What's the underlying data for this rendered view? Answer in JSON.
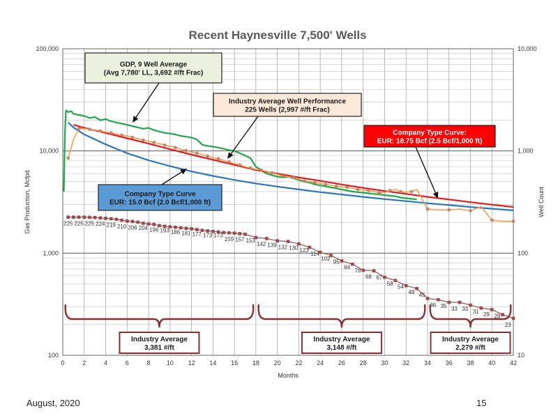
{
  "footer": {
    "date": "August, 2020",
    "page": "15"
  },
  "chart_data": {
    "type": "line",
    "title": "Recent Haynesville 7,500' Wells",
    "xlabel": "Months",
    "ylabel": "Gas Production, Mcfpd",
    "y2label": "Well Count",
    "xlim": [
      0,
      42
    ],
    "ylim": [
      100,
      100000
    ],
    "y2lim": [
      10,
      10000
    ],
    "log_scale": true,
    "grid": true,
    "x_ticks": [
      0,
      2,
      4,
      6,
      8,
      10,
      12,
      14,
      16,
      18,
      20,
      22,
      24,
      26,
      28,
      30,
      32,
      34,
      36,
      38,
      40,
      42
    ],
    "y_ticks": [
      {
        "value": 100,
        "label": "100"
      },
      {
        "value": 1000,
        "label": "1,000"
      },
      {
        "value": 10000,
        "label": "10,000"
      },
      {
        "value": 100000,
        "label": "100,000"
      }
    ],
    "y2_ticks": [
      {
        "value": 10,
        "label": "10"
      },
      {
        "value": 100,
        "label": "100"
      },
      {
        "value": 1000,
        "label": "1,000"
      },
      {
        "value": 10000,
        "label": "10,000"
      }
    ],
    "colors": {
      "gdp": "#1fa84a",
      "industry": "#f0a04b",
      "industry_marker": "#c9866e",
      "company_red": "#e41a1c",
      "company_blue": "#2a77c0",
      "well_count": "#9c4b4b",
      "brace": "#8b2e2e"
    },
    "series": [
      {
        "name": "Company Type Curve: EUR: 18.75 Bcf (2.5 Bcf/1,000 ft)",
        "key": "red",
        "x": [
          1,
          2,
          4,
          6,
          8,
          10,
          12,
          14,
          16,
          18,
          20,
          22,
          24,
          26,
          28,
          30,
          32,
          34,
          36,
          38,
          40,
          42
        ],
        "y": [
          18000,
          16800,
          15000,
          13300,
          11800,
          10400,
          9200,
          8200,
          7300,
          6500,
          6000,
          5500,
          5100,
          4700,
          4350,
          4050,
          3800,
          3550,
          3350,
          3150,
          2980,
          2830
        ]
      },
      {
        "name": "Company Type Curve EUR: 15.0 Bcf (2.0 Bcf/1,000 ft)",
        "key": "blue",
        "x": [
          0.5,
          1,
          2,
          4,
          6,
          8,
          10,
          12,
          14,
          16,
          18,
          20,
          22,
          24,
          26,
          28,
          30,
          32,
          34,
          36,
          38,
          40,
          42
        ],
        "y": [
          19000,
          17000,
          14500,
          11600,
          9500,
          8100,
          7100,
          6300,
          5700,
          5200,
          4800,
          4480,
          4200,
          3950,
          3750,
          3550,
          3380,
          3230,
          3080,
          2950,
          2830,
          2720,
          2620
        ]
      },
      {
        "name": "Industry Average Well Performance 225 Wells (2,997 #/ft Frac)",
        "key": "industry",
        "x": [
          0.5,
          1,
          1.5,
          2,
          2.5,
          3,
          3.5,
          4,
          4.5,
          5,
          5.5,
          6,
          6.5,
          7,
          7.5,
          8,
          8.5,
          9,
          9.5,
          10,
          10.5,
          11,
          11.5,
          12,
          12.5,
          13,
          13.5,
          14,
          14.5,
          15,
          15.5,
          16,
          16.5,
          17,
          17.5,
          18,
          18.5,
          19,
          19.5,
          20,
          20.5,
          21,
          21.5,
          22,
          22.5,
          23,
          23.5,
          24,
          24.5,
          25,
          25.5,
          26,
          26.5,
          27,
          27.5,
          28,
          28.5,
          29,
          29.5,
          30,
          30.5,
          31,
          31.5,
          32,
          32.5,
          33,
          34,
          35,
          36,
          37,
          38,
          39,
          40,
          41,
          42
        ],
        "y": [
          8500,
          13000,
          16500,
          16500,
          16300,
          16000,
          15700,
          15300,
          15000,
          14700,
          14300,
          14000,
          13600,
          13200,
          12800,
          12500,
          12100,
          11800,
          11400,
          11100,
          10800,
          10400,
          10100,
          9800,
          9500,
          9200,
          8900,
          8600,
          8400,
          8100,
          7800,
          7500,
          7300,
          7000,
          6800,
          6600,
          6500,
          6300,
          6100,
          5900,
          5700,
          5600,
          5500,
          5300,
          5100,
          5000,
          4900,
          4800,
          4700,
          4600,
          4500,
          4450,
          4400,
          4300,
          4200,
          4150,
          4100,
          4000,
          3900,
          3900,
          4100,
          4200,
          4000,
          3950,
          4000,
          4200,
          2700,
          2650,
          2650,
          2700,
          2600,
          2850,
          2100,
          2050,
          2050
        ]
      },
      {
        "name": "GDP, 9 Well Average (Avg 7,780' LL, 3,692 #/ft Frac)",
        "key": "gdp",
        "x": [
          0.1,
          0.2,
          0.3,
          0.5,
          0.8,
          1,
          1.5,
          2,
          2.5,
          3,
          3.5,
          4,
          4.5,
          5,
          5.5,
          6,
          6.5,
          7,
          7.5,
          8,
          8.5,
          9,
          9.5,
          10,
          10.5,
          11,
          11.5,
          12,
          12.5,
          13,
          13.5,
          14,
          14.5,
          15,
          15.5,
          16,
          16.5,
          17,
          17.5,
          18,
          18.5,
          19,
          19.5,
          20,
          20.5,
          21,
          21.5,
          22,
          22.5,
          23,
          23.5,
          24,
          24.5,
          25,
          25.5,
          26,
          26.5,
          27,
          27.5,
          28,
          28.5,
          29,
          29.5,
          30,
          30.5,
          31,
          31.5,
          32,
          32.5,
          33
        ],
        "y": [
          4000,
          15000,
          25000,
          24000,
          24500,
          23000,
          22500,
          22000,
          21000,
          21500,
          20000,
          20500,
          19500,
          19000,
          18500,
          18000,
          17500,
          17000,
          16500,
          16800,
          16000,
          15500,
          15000,
          14800,
          14500,
          14000,
          13800,
          13500,
          13000,
          11500,
          11200,
          11000,
          10800,
          10500,
          10200,
          10000,
          9500,
          9000,
          8500,
          7000,
          6500,
          6000,
          5800,
          5600,
          5500,
          5600,
          5400,
          5200,
          5000,
          4900,
          4700,
          4600,
          4500,
          4400,
          4300,
          4200,
          4100,
          4000,
          3950,
          3900,
          3850,
          3800,
          3750,
          3700,
          3650,
          3600,
          3500,
          3450,
          3400,
          3350
        ]
      },
      {
        "name": "Well Count",
        "key": "well_count",
        "axis": "y2",
        "x": [
          0.5,
          1,
          1.5,
          2,
          2.5,
          3,
          3.5,
          4,
          4.5,
          5,
          5.5,
          6,
          6.5,
          7,
          7.5,
          8,
          8.5,
          9,
          9.5,
          10,
          10.5,
          11,
          11.5,
          12,
          12.5,
          13,
          13.5,
          14,
          14.5,
          15,
          15.5,
          16,
          16.5,
          17,
          18,
          19,
          20,
          21,
          22,
          23,
          24,
          25,
          26,
          27,
          28,
          29,
          30,
          31,
          32,
          33,
          34,
          35,
          36,
          37,
          38,
          39,
          40,
          41,
          42
        ],
        "y": [
          225,
          225,
          225,
          225,
          224,
          223,
          221,
          219,
          217,
          214,
          210,
          206,
          204,
          201,
          196,
          193,
          191,
          186,
          183,
          181,
          179,
          177,
          175,
          173,
          170,
          167,
          165,
          163,
          161,
          159,
          158,
          157,
          155,
          153,
          142,
          139,
          132,
          130,
          123,
          114,
          102,
          95,
          84,
          78,
          68,
          67,
          58,
          54,
          48,
          45,
          36,
          35,
          33,
          33,
          31,
          29,
          28,
          25,
          23
        ]
      }
    ],
    "well_count_labels": [
      {
        "x": 0.5,
        "y": 225,
        "label": "225"
      },
      {
        "x": 1.5,
        "y": 225,
        "label": "225"
      },
      {
        "x": 2.5,
        "y": 225,
        "label": "225"
      },
      {
        "x": 3.5,
        "y": 224,
        "label": "224"
      },
      {
        "x": 4.5,
        "y": 219,
        "label": "219"
      },
      {
        "x": 5.5,
        "y": 210,
        "label": "210"
      },
      {
        "x": 6.5,
        "y": 206,
        "label": "206"
      },
      {
        "x": 7.5,
        "y": 204,
        "label": "204"
      },
      {
        "x": 8.5,
        "y": 196,
        "label": "196"
      },
      {
        "x": 9.5,
        "y": 193,
        "label": "193"
      },
      {
        "x": 10.5,
        "y": 186,
        "label": "186"
      },
      {
        "x": 11.5,
        "y": 181,
        "label": "181"
      },
      {
        "x": 12.5,
        "y": 177,
        "label": "177"
      },
      {
        "x": 13.5,
        "y": 173,
        "label": "173"
      },
      {
        "x": 14.5,
        "y": 173,
        "label": "173"
      },
      {
        "x": 15.5,
        "y": 159,
        "label": "159"
      },
      {
        "x": 16.5,
        "y": 157,
        "label": "157"
      },
      {
        "x": 17.5,
        "y": 153,
        "label": "153"
      },
      {
        "x": 18.5,
        "y": 142,
        "label": "142"
      },
      {
        "x": 19.5,
        "y": 139,
        "label": "139"
      },
      {
        "x": 20.5,
        "y": 132,
        "label": "132"
      },
      {
        "x": 21.5,
        "y": 130,
        "label": "130"
      },
      {
        "x": 22.5,
        "y": 123,
        "label": "123"
      },
      {
        "x": 23.5,
        "y": 114,
        "label": "114"
      },
      {
        "x": 24.5,
        "y": 102,
        "label": "102"
      },
      {
        "x": 25.5,
        "y": 95,
        "label": "95"
      },
      {
        "x": 26.5,
        "y": 84,
        "label": "84"
      },
      {
        "x": 27.5,
        "y": 78,
        "label": "78"
      },
      {
        "x": 28.5,
        "y": 68,
        "label": "68"
      },
      {
        "x": 29.5,
        "y": 67,
        "label": "67"
      },
      {
        "x": 30.5,
        "y": 58,
        "label": "58"
      },
      {
        "x": 31.5,
        "y": 54,
        "label": "54"
      },
      {
        "x": 32.5,
        "y": 48,
        "label": "48"
      },
      {
        "x": 33.5,
        "y": 45,
        "label": "45"
      },
      {
        "x": 34.5,
        "y": 36,
        "label": "36"
      },
      {
        "x": 35.5,
        "y": 35,
        "label": "35"
      },
      {
        "x": 36.5,
        "y": 33,
        "label": "33"
      },
      {
        "x": 37.5,
        "y": 33,
        "label": "33"
      },
      {
        "x": 38.5,
        "y": 31,
        "label": "31"
      },
      {
        "x": 39.5,
        "y": 29,
        "label": "29"
      },
      {
        "x": 40.5,
        "y": 28,
        "label": "28"
      },
      {
        "x": 41.5,
        "y": 23,
        "label": "23"
      }
    ],
    "annotations": [
      {
        "key": "gdp",
        "lines": [
          "GDP, 9 Well Average",
          "(Avg 7,780' LL, 3,692 #/ft Frac)"
        ],
        "fill": "#ebf1de",
        "text_color": "#1a1a1a"
      },
      {
        "key": "industry",
        "lines": [
          "Industry Average Well Performance",
          "225 Wells (2,997 #/ft Frac)"
        ],
        "fill": "#fde9d9",
        "text_color": "#1a1a1a"
      },
      {
        "key": "red",
        "lines": [
          "Company Type Curve:",
          "EUR: 18.75 Bcf (2.5 Bcf/1,000 ft)"
        ],
        "fill": "#ff0000",
        "text_color": "#ffffff"
      },
      {
        "key": "blue",
        "lines": [
          "Company Type Curve",
          "EUR: 15.0 Bcf (2.0 Bcf/1,000 ft)"
        ],
        "fill": "#5b9bd5",
        "text_color": "#1a1a1a"
      }
    ],
    "industry_average_periods": [
      {
        "from": 0,
        "to": 18,
        "lines": [
          "Industry Average",
          "3,381 #/ft"
        ]
      },
      {
        "from": 18,
        "to": 34,
        "lines": [
          "Industry Average",
          "3,148 #/ft"
        ]
      },
      {
        "from": 34,
        "to": 42,
        "lines": [
          "Industry Average",
          "2,279 #/ft"
        ]
      }
    ]
  }
}
